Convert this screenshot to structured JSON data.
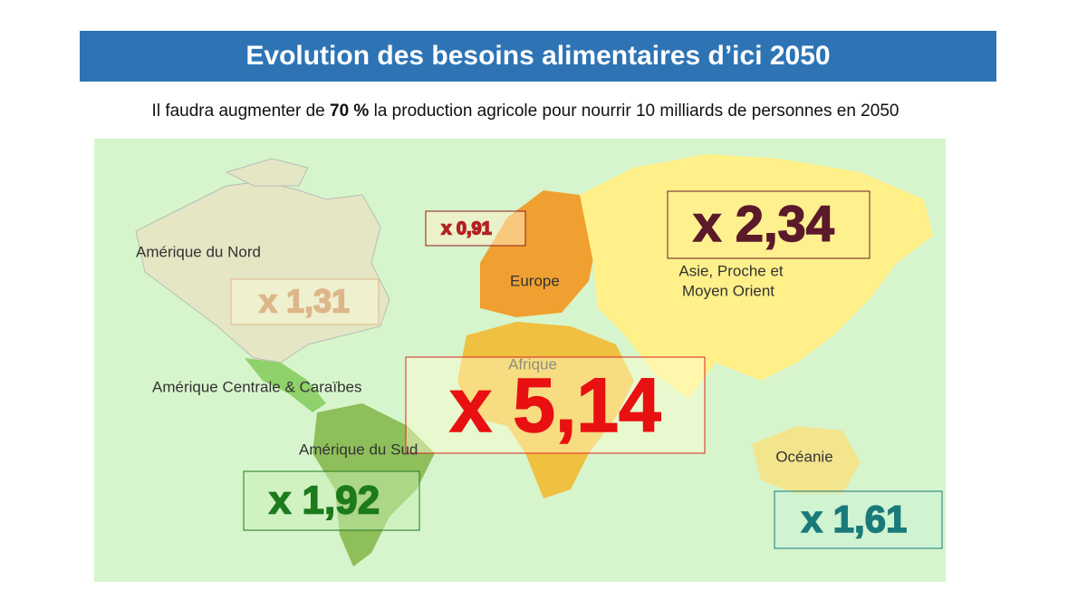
{
  "header": {
    "title": "Evolution des besoins alimentaires  d’ici 2050"
  },
  "subtitle": {
    "before": "Il faudra augmenter de ",
    "highlight": "70 %",
    "after": " la production agricole pour nourrir 10 milliards de personnes en 2050"
  },
  "regions": [
    {
      "label": "Amérique du Nord",
      "multiplier": "x 1,31"
    },
    {
      "label": "Europe",
      "multiplier": "x 0,91"
    },
    {
      "label_lines": [
        "Asie, Proche et",
        "Moyen Orient"
      ],
      "multiplier": "x 2,34"
    },
    {
      "label": "Afrique",
      "multiplier": "x 5,14"
    },
    {
      "label": "Amérique Centrale & Caraïbes"
    },
    {
      "label": "Amérique du Sud",
      "multiplier": "x 1,92"
    },
    {
      "label": "Océanie",
      "multiplier": "x 1,61"
    }
  ]
}
